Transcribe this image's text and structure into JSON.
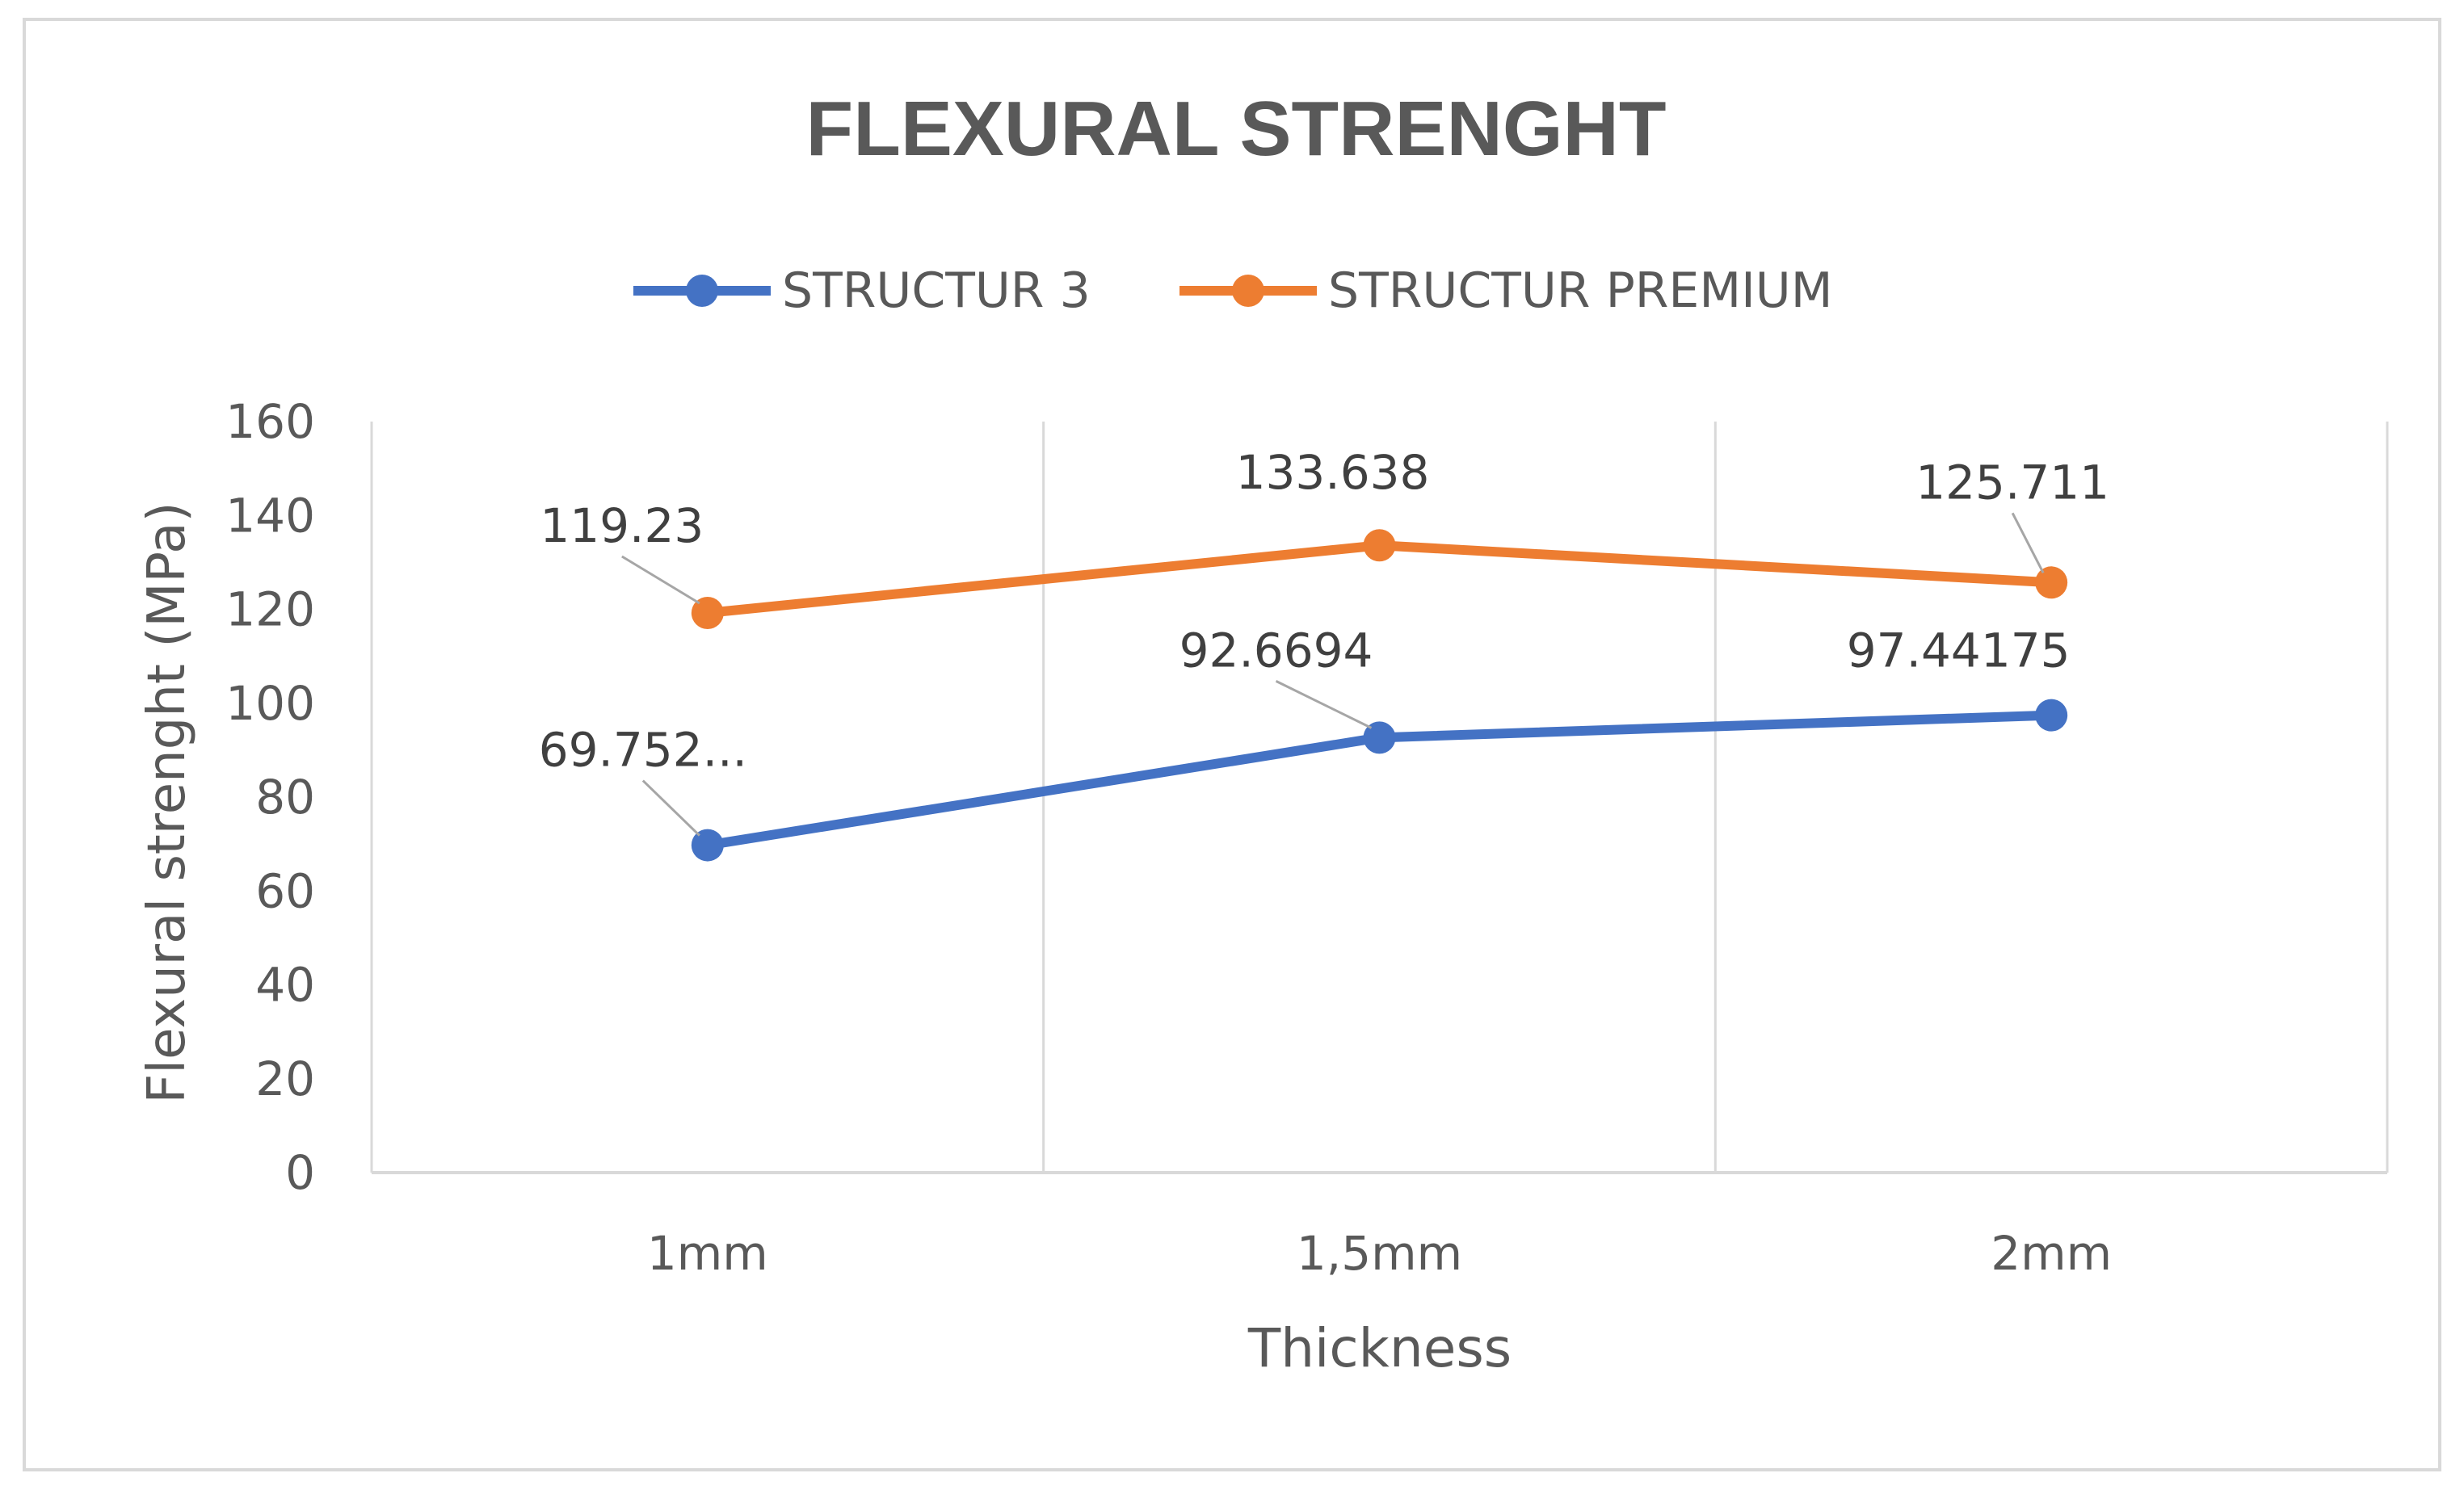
{
  "chart_data": {
    "type": "line",
    "title": "FLEXURAL STRENGHT",
    "xlabel": "Thickness",
    "ylabel": "Flexural strenght (MPa)",
    "categories": [
      "1mm",
      "1,5mm",
      "2mm"
    ],
    "ylim": [
      0,
      160
    ],
    "yticks": [
      0,
      20,
      40,
      60,
      80,
      100,
      120,
      140,
      160
    ],
    "grid": "vertical",
    "legend_position": "top",
    "series": [
      {
        "name": "STRUCTUR 3",
        "color": "#4472c4",
        "values": [
          69.752,
          92.6694,
          97.44175
        ],
        "data_labels": [
          "69.752...",
          "92.6694",
          "97.44175"
        ]
      },
      {
        "name": "STRUCTUR PREMIUM",
        "color": "#ed7d31",
        "values": [
          119.23,
          133.638,
          125.711
        ],
        "data_labels": [
          "119.23",
          "133.638",
          "125.711"
        ]
      }
    ]
  }
}
